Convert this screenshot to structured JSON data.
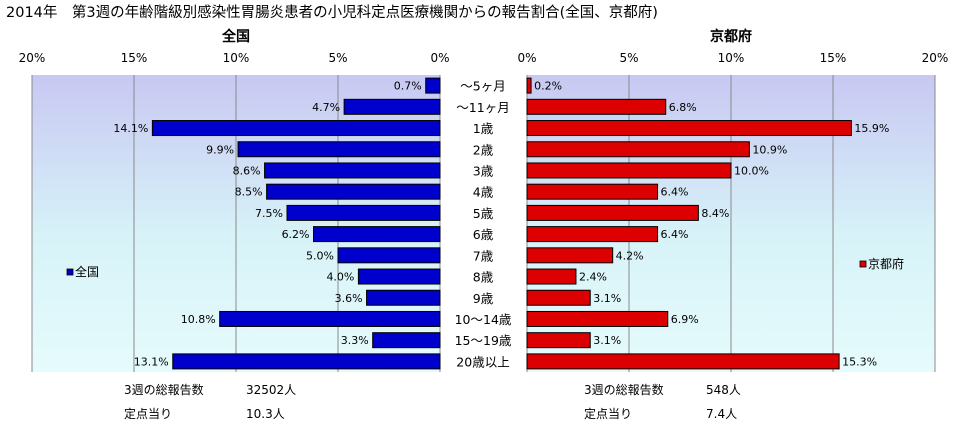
{
  "title": "2014年　第3週の年齢階級別感染性胃腸炎患者の小児科定点医療機関からの報告割合(全国、京都府)",
  "age_groups": [
    "～5ヶ月",
    "～11ヶ月",
    "1歳",
    "2歳",
    "3歳",
    "4歳",
    "5歳",
    "6歳",
    "7歳",
    "8歳",
    "9歳",
    "10～14歳",
    "15～19歳",
    "20歳以上"
  ],
  "chart_data": [
    {
      "type": "bar",
      "orientation": "horizontal",
      "direction": "right-to-left",
      "title": "全国",
      "xlim": [
        0,
        20
      ],
      "ticks": [
        "20%",
        "15%",
        "10%",
        "5%",
        "0%"
      ],
      "tick_values": [
        20,
        15,
        10,
        5,
        0
      ],
      "grid": true,
      "legend_position": "left",
      "series": [
        {
          "name": "全国",
          "color": "#0000cc",
          "values": [
            0.7,
            4.7,
            14.1,
            9.9,
            8.6,
            8.5,
            7.5,
            6.2,
            5.0,
            4.0,
            3.6,
            10.8,
            3.3,
            13.1
          ],
          "labels": [
            "0.7%",
            "4.7%",
            "14.1%",
            "9.9%",
            "8.6%",
            "8.5%",
            "7.5%",
            "6.2%",
            "5.0%",
            "4.0%",
            "3.6%",
            "10.8%",
            "3.3%",
            "13.1%"
          ]
        }
      ],
      "footer": [
        {
          "label": "3週の総報告数",
          "value": "32502人"
        },
        {
          "label": "定点当り",
          "value": "10.3人"
        }
      ]
    },
    {
      "type": "bar",
      "orientation": "horizontal",
      "direction": "left-to-right",
      "title": "京都府",
      "xlim": [
        0,
        20
      ],
      "ticks": [
        "0%",
        "5%",
        "10%",
        "15%",
        "20%"
      ],
      "tick_values": [
        0,
        5,
        10,
        15,
        20
      ],
      "grid": true,
      "legend_position": "right",
      "series": [
        {
          "name": "京都府",
          "color": "#dd0000",
          "values": [
            0.2,
            6.8,
            15.9,
            10.9,
            10.0,
            6.4,
            8.4,
            6.4,
            4.2,
            2.4,
            3.1,
            6.9,
            3.1,
            15.3
          ],
          "labels": [
            "0.2%",
            "6.8%",
            "15.9%",
            "10.9%",
            "10.0%",
            "6.4%",
            "8.4%",
            "6.4%",
            "4.2%",
            "2.4%",
            "3.1%",
            "6.9%",
            "3.1%",
            "15.3%"
          ]
        }
      ],
      "footer": [
        {
          "label": "3週の総報告数",
          "value": "548人"
        },
        {
          "label": "定点当り",
          "value": "7.4人"
        }
      ]
    }
  ]
}
